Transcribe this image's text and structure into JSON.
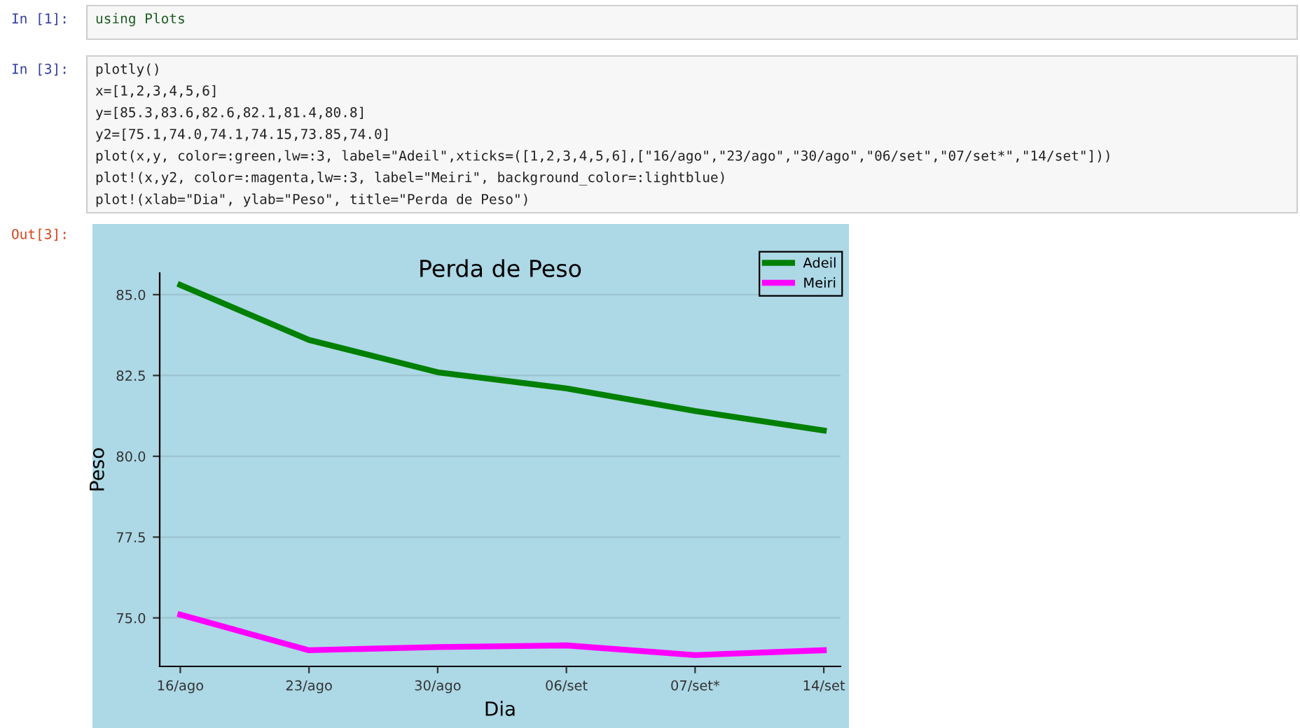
{
  "chart_data": {
    "type": "line",
    "title": "Perda de Peso",
    "xlabel": "Dia",
    "ylabel": "Peso",
    "categories": [
      "16/ago",
      "23/ago",
      "30/ago",
      "06/set",
      "07/set*",
      "14/set"
    ],
    "series": [
      {
        "name": "Adeil",
        "color": "#008000",
        "values": [
          85.3,
          83.6,
          82.6,
          82.1,
          81.4,
          80.8
        ]
      },
      {
        "name": "Meiri",
        "color": "#ff00ff",
        "values": [
          75.1,
          74.0,
          74.1,
          74.15,
          73.85,
          74.0
        ]
      }
    ],
    "ylim": [
      73.5,
      85.67
    ],
    "yticks": [
      {
        "value": 75,
        "label": "75.0"
      },
      {
        "value": 77.5,
        "label": "77.5"
      },
      {
        "value": 80,
        "label": "80.0"
      },
      {
        "value": 82.5,
        "label": "82.5"
      },
      {
        "value": 85,
        "label": "85.0"
      }
    ],
    "grid": "y",
    "legend": "top right",
    "line_style": "solid",
    "marker": "none",
    "annotations": [
      "In [1]:",
      "using Plots",
      "In [3]:",
      "plotly()",
      "x=[1,2,3,4,5,6]",
      "y=[85.3,83.6,82.6,82.1,81.4,80.8]",
      "y2=[75.1,74.0,74.1,74.15,73.85,74.0]",
      "plot(x,y, color=:green,lw=:3, label=\"Adeil\",xticks=([1,2,3,4,5,6],[\"16/ago\",\"23/ago\",\"30/ago\",\"06/set\",\"07/set*\",\"14/set\"]))",
      "plot!(x,y2, color=:magenta,lw=:3, label=\"Meiri\", background_color=:lightblue)",
      "plot!(xlab=\"Dia\", ylab=\"Peso\", title=\"Perda de Peso\")",
      "Out[3]:"
    ]
  }
}
